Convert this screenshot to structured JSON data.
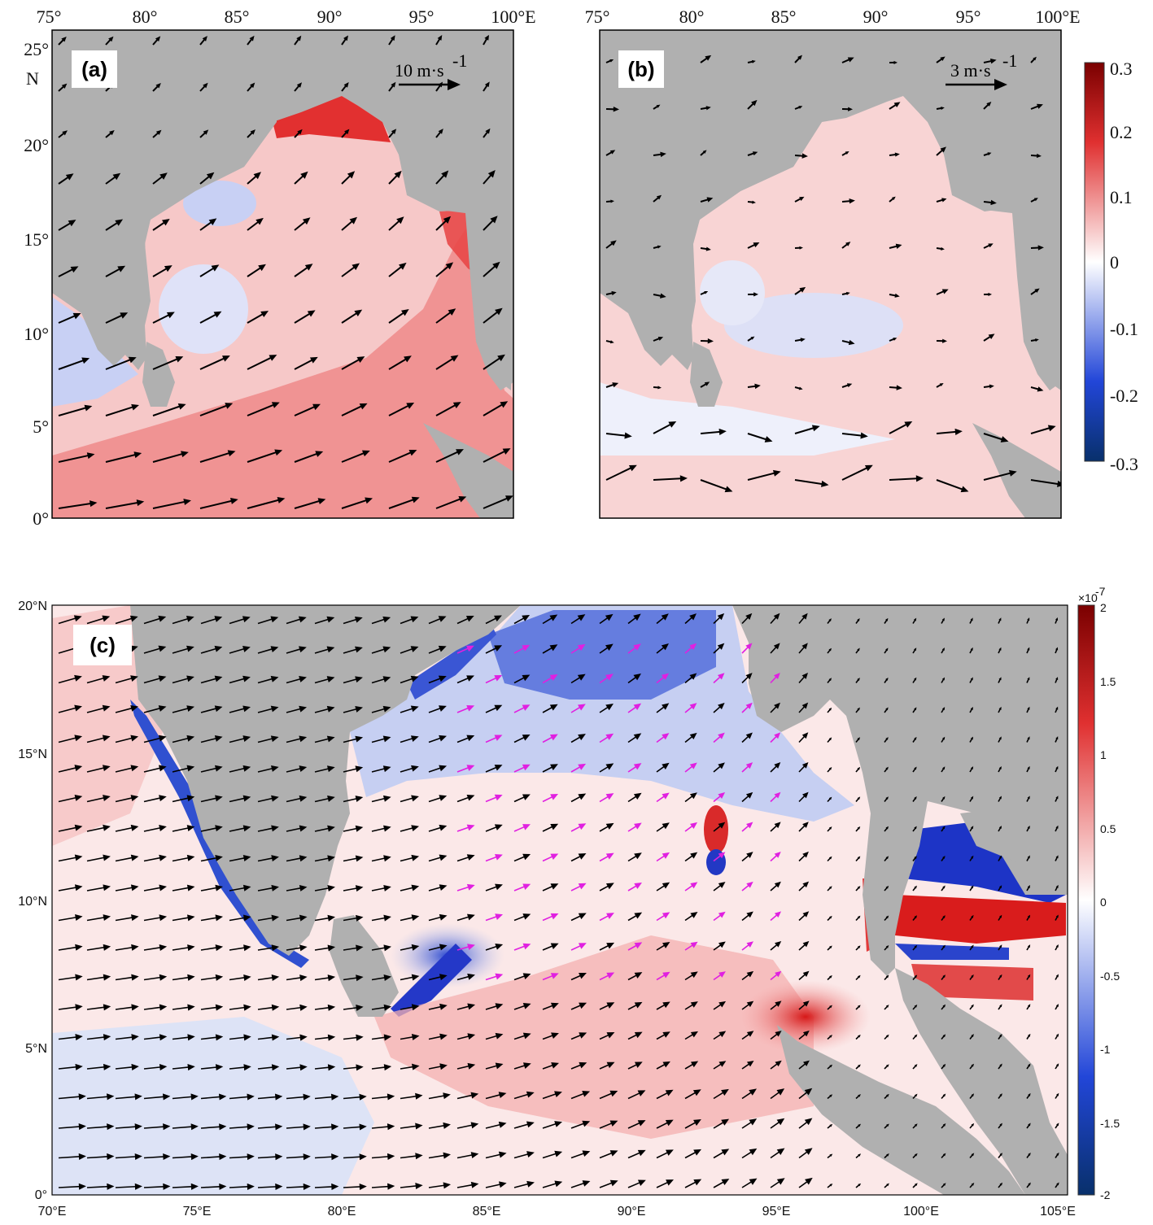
{
  "panel_a": {
    "label": "(a)",
    "scale_text": "10 m·s",
    "scale_exp": "-1",
    "x_ticks": [
      "75°",
      "80°",
      "85°",
      "90°",
      "95°",
      "100°E"
    ],
    "y_ticks": [
      "25°",
      "N",
      "20°",
      "15°",
      "10°",
      "5°",
      "0°"
    ]
  },
  "panel_b": {
    "label": "(b)",
    "scale_text": "3 m·s",
    "scale_exp": "-1",
    "x_ticks": [
      "75°",
      "80°",
      "85°",
      "90°",
      "95°",
      "100°E"
    ]
  },
  "colorbar_ab": {
    "ticks": [
      "0.3",
      "0.2",
      "0.1",
      "0",
      "-0.1",
      "-0.2",
      "-0.3"
    ],
    "colors": [
      "#08306b",
      "#2040d0",
      "#ffffff",
      "#e03030",
      "#8b0000"
    ]
  },
  "panel_c": {
    "label": "(c)",
    "x_ticks": [
      "70°E",
      "75°E",
      "80°E",
      "85°E",
      "90°E",
      "95°E",
      "100°E",
      "105°E"
    ],
    "y_ticks": [
      "20°N",
      "15°N",
      "10°N",
      "5°N",
      "0°"
    ]
  },
  "colorbar_c": {
    "exponent": "×10",
    "exponent_power": "-7",
    "ticks": [
      "2",
      "1.5",
      "1",
      "0.5",
      "0",
      "-0.5",
      "-1",
      "-1.5",
      "-2"
    ]
  },
  "colors": {
    "land": "#b0b0b0",
    "positive": "#e8454a",
    "negative": "#3a5ad8",
    "arrow": "#000000",
    "arrow_highlight": "#e020e0"
  }
}
